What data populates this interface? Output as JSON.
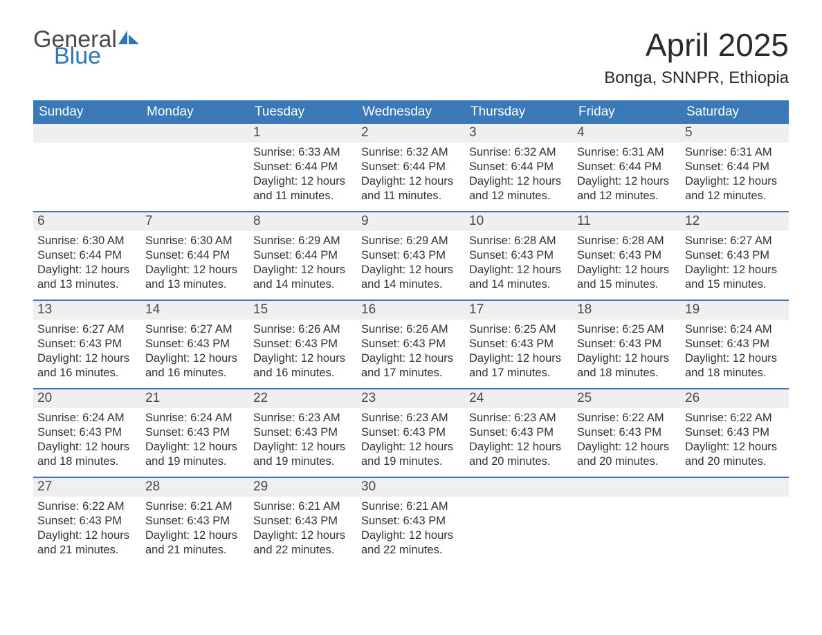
{
  "logo": {
    "line1": "General",
    "line2": "Blue",
    "icon_color": "#2f76b9",
    "text_gray": "#4a4a4a"
  },
  "title": "April 2025",
  "location": "Bonga, SNNPR, Ethiopia",
  "colors": {
    "header_bg": "#3b78b8",
    "header_text": "#ffffff",
    "daynum_bg": "#efefef",
    "body_text": "#323232",
    "page_bg": "#ffffff",
    "week_border": "#3b78b8"
  },
  "typography": {
    "title_fontsize": 46,
    "location_fontsize": 24,
    "weekday_fontsize": 19,
    "daynum_fontsize": 19,
    "body_fontsize": 16.5
  },
  "weekdays": [
    "Sunday",
    "Monday",
    "Tuesday",
    "Wednesday",
    "Thursday",
    "Friday",
    "Saturday"
  ],
  "weeks": [
    [
      {
        "day": "",
        "sunrise": "",
        "sunset": "",
        "daylight1": "",
        "daylight2": ""
      },
      {
        "day": "",
        "sunrise": "",
        "sunset": "",
        "daylight1": "",
        "daylight2": ""
      },
      {
        "day": "1",
        "sunrise": "Sunrise: 6:33 AM",
        "sunset": "Sunset: 6:44 PM",
        "daylight1": "Daylight: 12 hours",
        "daylight2": "and 11 minutes."
      },
      {
        "day": "2",
        "sunrise": "Sunrise: 6:32 AM",
        "sunset": "Sunset: 6:44 PM",
        "daylight1": "Daylight: 12 hours",
        "daylight2": "and 11 minutes."
      },
      {
        "day": "3",
        "sunrise": "Sunrise: 6:32 AM",
        "sunset": "Sunset: 6:44 PM",
        "daylight1": "Daylight: 12 hours",
        "daylight2": "and 12 minutes."
      },
      {
        "day": "4",
        "sunrise": "Sunrise: 6:31 AM",
        "sunset": "Sunset: 6:44 PM",
        "daylight1": "Daylight: 12 hours",
        "daylight2": "and 12 minutes."
      },
      {
        "day": "5",
        "sunrise": "Sunrise: 6:31 AM",
        "sunset": "Sunset: 6:44 PM",
        "daylight1": "Daylight: 12 hours",
        "daylight2": "and 12 minutes."
      }
    ],
    [
      {
        "day": "6",
        "sunrise": "Sunrise: 6:30 AM",
        "sunset": "Sunset: 6:44 PM",
        "daylight1": "Daylight: 12 hours",
        "daylight2": "and 13 minutes."
      },
      {
        "day": "7",
        "sunrise": "Sunrise: 6:30 AM",
        "sunset": "Sunset: 6:44 PM",
        "daylight1": "Daylight: 12 hours",
        "daylight2": "and 13 minutes."
      },
      {
        "day": "8",
        "sunrise": "Sunrise: 6:29 AM",
        "sunset": "Sunset: 6:44 PM",
        "daylight1": "Daylight: 12 hours",
        "daylight2": "and 14 minutes."
      },
      {
        "day": "9",
        "sunrise": "Sunrise: 6:29 AM",
        "sunset": "Sunset: 6:43 PM",
        "daylight1": "Daylight: 12 hours",
        "daylight2": "and 14 minutes."
      },
      {
        "day": "10",
        "sunrise": "Sunrise: 6:28 AM",
        "sunset": "Sunset: 6:43 PM",
        "daylight1": "Daylight: 12 hours",
        "daylight2": "and 14 minutes."
      },
      {
        "day": "11",
        "sunrise": "Sunrise: 6:28 AM",
        "sunset": "Sunset: 6:43 PM",
        "daylight1": "Daylight: 12 hours",
        "daylight2": "and 15 minutes."
      },
      {
        "day": "12",
        "sunrise": "Sunrise: 6:27 AM",
        "sunset": "Sunset: 6:43 PM",
        "daylight1": "Daylight: 12 hours",
        "daylight2": "and 15 minutes."
      }
    ],
    [
      {
        "day": "13",
        "sunrise": "Sunrise: 6:27 AM",
        "sunset": "Sunset: 6:43 PM",
        "daylight1": "Daylight: 12 hours",
        "daylight2": "and 16 minutes."
      },
      {
        "day": "14",
        "sunrise": "Sunrise: 6:27 AM",
        "sunset": "Sunset: 6:43 PM",
        "daylight1": "Daylight: 12 hours",
        "daylight2": "and 16 minutes."
      },
      {
        "day": "15",
        "sunrise": "Sunrise: 6:26 AM",
        "sunset": "Sunset: 6:43 PM",
        "daylight1": "Daylight: 12 hours",
        "daylight2": "and 16 minutes."
      },
      {
        "day": "16",
        "sunrise": "Sunrise: 6:26 AM",
        "sunset": "Sunset: 6:43 PM",
        "daylight1": "Daylight: 12 hours",
        "daylight2": "and 17 minutes."
      },
      {
        "day": "17",
        "sunrise": "Sunrise: 6:25 AM",
        "sunset": "Sunset: 6:43 PM",
        "daylight1": "Daylight: 12 hours",
        "daylight2": "and 17 minutes."
      },
      {
        "day": "18",
        "sunrise": "Sunrise: 6:25 AM",
        "sunset": "Sunset: 6:43 PM",
        "daylight1": "Daylight: 12 hours",
        "daylight2": "and 18 minutes."
      },
      {
        "day": "19",
        "sunrise": "Sunrise: 6:24 AM",
        "sunset": "Sunset: 6:43 PM",
        "daylight1": "Daylight: 12 hours",
        "daylight2": "and 18 minutes."
      }
    ],
    [
      {
        "day": "20",
        "sunrise": "Sunrise: 6:24 AM",
        "sunset": "Sunset: 6:43 PM",
        "daylight1": "Daylight: 12 hours",
        "daylight2": "and 18 minutes."
      },
      {
        "day": "21",
        "sunrise": "Sunrise: 6:24 AM",
        "sunset": "Sunset: 6:43 PM",
        "daylight1": "Daylight: 12 hours",
        "daylight2": "and 19 minutes."
      },
      {
        "day": "22",
        "sunrise": "Sunrise: 6:23 AM",
        "sunset": "Sunset: 6:43 PM",
        "daylight1": "Daylight: 12 hours",
        "daylight2": "and 19 minutes."
      },
      {
        "day": "23",
        "sunrise": "Sunrise: 6:23 AM",
        "sunset": "Sunset: 6:43 PM",
        "daylight1": "Daylight: 12 hours",
        "daylight2": "and 19 minutes."
      },
      {
        "day": "24",
        "sunrise": "Sunrise: 6:23 AM",
        "sunset": "Sunset: 6:43 PM",
        "daylight1": "Daylight: 12 hours",
        "daylight2": "and 20 minutes."
      },
      {
        "day": "25",
        "sunrise": "Sunrise: 6:22 AM",
        "sunset": "Sunset: 6:43 PM",
        "daylight1": "Daylight: 12 hours",
        "daylight2": "and 20 minutes."
      },
      {
        "day": "26",
        "sunrise": "Sunrise: 6:22 AM",
        "sunset": "Sunset: 6:43 PM",
        "daylight1": "Daylight: 12 hours",
        "daylight2": "and 20 minutes."
      }
    ],
    [
      {
        "day": "27",
        "sunrise": "Sunrise: 6:22 AM",
        "sunset": "Sunset: 6:43 PM",
        "daylight1": "Daylight: 12 hours",
        "daylight2": "and 21 minutes."
      },
      {
        "day": "28",
        "sunrise": "Sunrise: 6:21 AM",
        "sunset": "Sunset: 6:43 PM",
        "daylight1": "Daylight: 12 hours",
        "daylight2": "and 21 minutes."
      },
      {
        "day": "29",
        "sunrise": "Sunrise: 6:21 AM",
        "sunset": "Sunset: 6:43 PM",
        "daylight1": "Daylight: 12 hours",
        "daylight2": "and 22 minutes."
      },
      {
        "day": "30",
        "sunrise": "Sunrise: 6:21 AM",
        "sunset": "Sunset: 6:43 PM",
        "daylight1": "Daylight: 12 hours",
        "daylight2": "and 22 minutes."
      },
      {
        "day": "",
        "sunrise": "",
        "sunset": "",
        "daylight1": "",
        "daylight2": ""
      },
      {
        "day": "",
        "sunrise": "",
        "sunset": "",
        "daylight1": "",
        "daylight2": ""
      },
      {
        "day": "",
        "sunrise": "",
        "sunset": "",
        "daylight1": "",
        "daylight2": ""
      }
    ]
  ]
}
